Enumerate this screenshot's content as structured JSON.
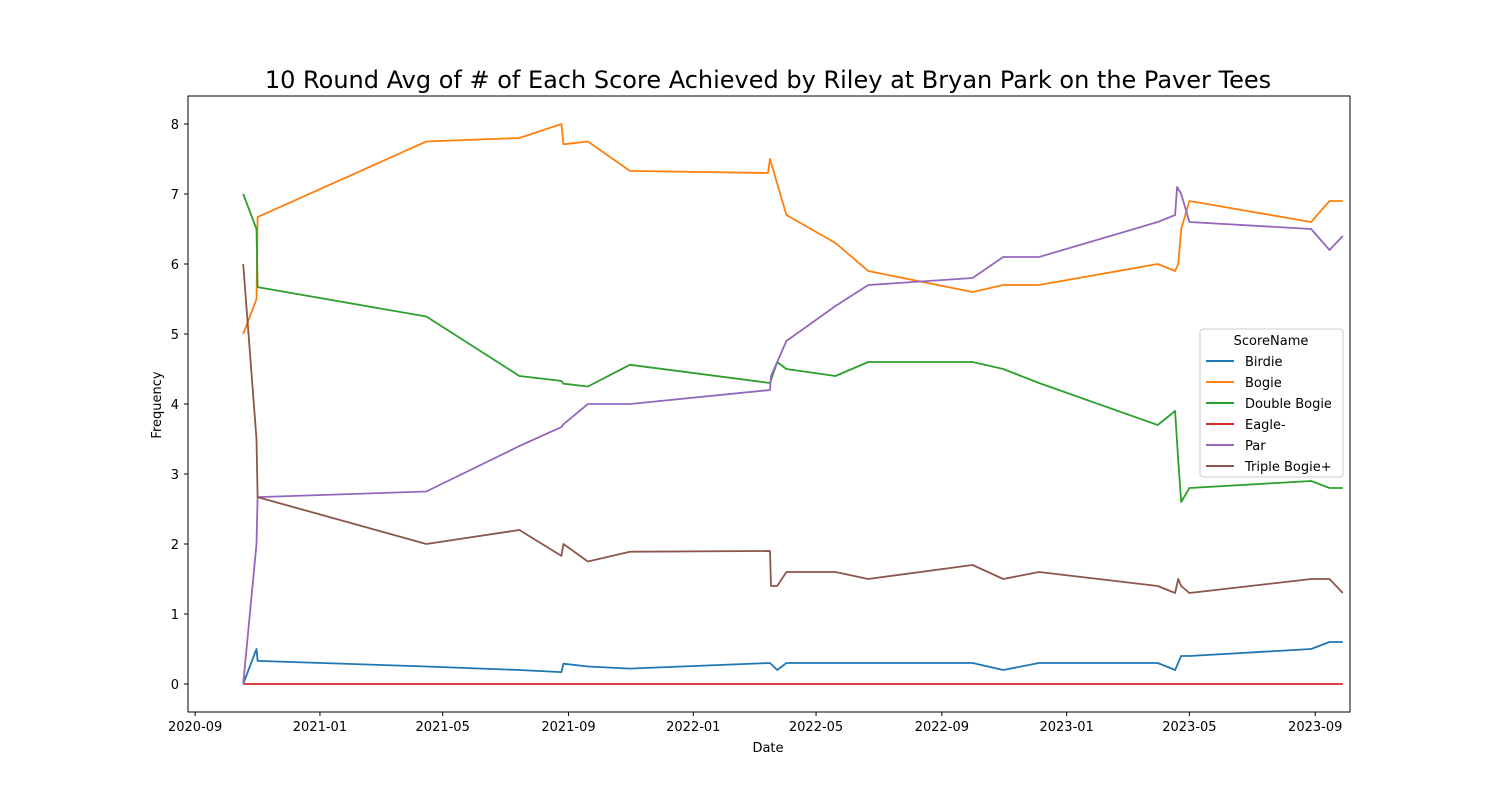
{
  "chart_data": {
    "type": "line",
    "title": "10 Round Avg of # of Each Score Achieved by Riley at Bryan Park on the Paver Tees",
    "xlabel": "Date",
    "ylabel": "Frequency",
    "xlim": [
      "2020-08-25",
      "2023-10-05"
    ],
    "ylim": [
      -0.4,
      8.4
    ],
    "x_ticks": [
      "2020-09-01",
      "2021-01-01",
      "2021-05-01",
      "2021-09-01",
      "2022-01-01",
      "2022-05-01",
      "2022-09-01",
      "2023-01-01",
      "2023-05-01",
      "2023-09-01"
    ],
    "x_tick_labels": [
      "2020-09",
      "2021-01",
      "2021-05",
      "2021-09",
      "2022-01",
      "2022-05",
      "2022-09",
      "2023-01",
      "2023-05",
      "2023-09"
    ],
    "y_ticks": [
      0,
      1,
      2,
      3,
      4,
      5,
      6,
      7,
      8
    ],
    "grid": false,
    "legend": {
      "title": "ScoreName",
      "placement": "center-right"
    },
    "series": [
      {
        "name": "Birdie",
        "color": "#1f77b4",
        "points": [
          [
            "2020-10-18",
            0
          ],
          [
            "2020-10-31",
            0.5
          ],
          [
            "2020-11-01",
            0.33
          ],
          [
            "2021-04-15",
            0.25
          ],
          [
            "2021-07-15",
            0.2
          ],
          [
            "2021-08-25",
            0.17
          ],
          [
            "2021-08-27",
            0.29
          ],
          [
            "2021-09-20",
            0.25
          ],
          [
            "2021-10-31",
            0.22
          ],
          [
            "2022-03-17",
            0.3
          ],
          [
            "2022-03-24",
            0.2
          ],
          [
            "2022-04-02",
            0.3
          ],
          [
            "2022-05-20",
            0.3
          ],
          [
            "2022-06-21",
            0.3
          ],
          [
            "2022-10-01",
            0.3
          ],
          [
            "2022-10-31",
            0.2
          ],
          [
            "2022-12-05",
            0.3
          ],
          [
            "2023-03-31",
            0.3
          ],
          [
            "2023-04-17",
            0.2
          ],
          [
            "2023-04-23",
            0.4
          ],
          [
            "2023-05-01",
            0.4
          ],
          [
            "2023-08-28",
            0.5
          ],
          [
            "2023-09-15",
            0.6
          ],
          [
            "2023-09-28",
            0.6
          ]
        ]
      },
      {
        "name": "Bogie",
        "color": "#ff7f0e",
        "points": [
          [
            "2020-10-18",
            5.0
          ],
          [
            "2020-10-31",
            5.5
          ],
          [
            "2020-11-01",
            6.67
          ],
          [
            "2021-04-15",
            7.75
          ],
          [
            "2021-07-15",
            7.8
          ],
          [
            "2021-08-25",
            8.0
          ],
          [
            "2021-08-27",
            7.71
          ],
          [
            "2021-09-20",
            7.75
          ],
          [
            "2021-10-31",
            7.33
          ],
          [
            "2022-03-15",
            7.3
          ],
          [
            "2022-03-17",
            7.5
          ],
          [
            "2022-04-02",
            6.7
          ],
          [
            "2022-05-20",
            6.3
          ],
          [
            "2022-06-21",
            5.9
          ],
          [
            "2022-10-01",
            5.6
          ],
          [
            "2022-10-31",
            5.7
          ],
          [
            "2022-12-05",
            5.7
          ],
          [
            "2023-03-31",
            6.0
          ],
          [
            "2023-04-17",
            5.9
          ],
          [
            "2023-04-20",
            6.0
          ],
          [
            "2023-04-23",
            6.5
          ],
          [
            "2023-05-01",
            6.9
          ],
          [
            "2023-08-28",
            6.6
          ],
          [
            "2023-09-15",
            6.9
          ],
          [
            "2023-09-28",
            6.9
          ]
        ]
      },
      {
        "name": "Double Bogie",
        "color": "#2ca02c",
        "points": [
          [
            "2020-10-18",
            7.0
          ],
          [
            "2020-10-31",
            6.5
          ],
          [
            "2020-11-01",
            5.67
          ],
          [
            "2021-04-15",
            5.25
          ],
          [
            "2021-07-15",
            4.4
          ],
          [
            "2021-08-25",
            4.33
          ],
          [
            "2021-08-27",
            4.29
          ],
          [
            "2021-09-20",
            4.25
          ],
          [
            "2021-10-31",
            4.56
          ],
          [
            "2022-03-17",
            4.3
          ],
          [
            "2022-03-24",
            4.6
          ],
          [
            "2022-04-02",
            4.5
          ],
          [
            "2022-05-20",
            4.4
          ],
          [
            "2022-06-21",
            4.6
          ],
          [
            "2022-10-01",
            4.6
          ],
          [
            "2022-10-31",
            4.5
          ],
          [
            "2022-12-05",
            4.3
          ],
          [
            "2023-03-31",
            3.7
          ],
          [
            "2023-04-17",
            3.9
          ],
          [
            "2023-04-20",
            3.2
          ],
          [
            "2023-04-23",
            2.6
          ],
          [
            "2023-05-01",
            2.8
          ],
          [
            "2023-08-28",
            2.9
          ],
          [
            "2023-09-15",
            2.8
          ],
          [
            "2023-09-28",
            2.8
          ]
        ]
      },
      {
        "name": "Eagle-",
        "color": "#d62728",
        "points": [
          [
            "2020-10-18",
            0
          ],
          [
            "2023-09-28",
            0
          ]
        ]
      },
      {
        "name": "Par",
        "color": "#9467bd",
        "points": [
          [
            "2020-10-18",
            0
          ],
          [
            "2020-10-31",
            2.0
          ],
          [
            "2020-11-01",
            2.67
          ],
          [
            "2021-04-15",
            2.75
          ],
          [
            "2021-07-15",
            3.4
          ],
          [
            "2021-08-25",
            3.67
          ],
          [
            "2021-08-27",
            3.71
          ],
          [
            "2021-09-20",
            4.0
          ],
          [
            "2021-10-31",
            4.0
          ],
          [
            "2022-03-17",
            4.2
          ],
          [
            "2022-03-18",
            4.4
          ],
          [
            "2022-03-24",
            4.6
          ],
          [
            "2022-04-02",
            4.9
          ],
          [
            "2022-05-20",
            5.4
          ],
          [
            "2022-06-21",
            5.7
          ],
          [
            "2022-10-01",
            5.8
          ],
          [
            "2022-10-31",
            6.1
          ],
          [
            "2022-12-05",
            6.1
          ],
          [
            "2023-03-31",
            6.6
          ],
          [
            "2023-04-17",
            6.7
          ],
          [
            "2023-04-19",
            7.1
          ],
          [
            "2023-04-23",
            7.0
          ],
          [
            "2023-05-01",
            6.6
          ],
          [
            "2023-08-28",
            6.5
          ],
          [
            "2023-09-15",
            6.2
          ],
          [
            "2023-09-28",
            6.4
          ]
        ]
      },
      {
        "name": "Triple Bogie+",
        "color": "#8c564b",
        "points": [
          [
            "2020-10-18",
            6.0
          ],
          [
            "2020-10-31",
            3.5
          ],
          [
            "2020-11-01",
            2.67
          ],
          [
            "2021-04-15",
            2.0
          ],
          [
            "2021-07-15",
            2.2
          ],
          [
            "2021-08-25",
            1.83
          ],
          [
            "2021-08-27",
            2.0
          ],
          [
            "2021-09-20",
            1.75
          ],
          [
            "2021-10-31",
            1.89
          ],
          [
            "2022-03-17",
            1.9
          ],
          [
            "2022-03-18",
            1.4
          ],
          [
            "2022-03-24",
            1.4
          ],
          [
            "2022-04-02",
            1.6
          ],
          [
            "2022-05-20",
            1.6
          ],
          [
            "2022-06-21",
            1.5
          ],
          [
            "2022-10-01",
            1.7
          ],
          [
            "2022-10-31",
            1.5
          ],
          [
            "2022-12-05",
            1.6
          ],
          [
            "2023-03-31",
            1.4
          ],
          [
            "2023-04-17",
            1.3
          ],
          [
            "2023-04-20",
            1.5
          ],
          [
            "2023-04-23",
            1.4
          ],
          [
            "2023-05-01",
            1.3
          ],
          [
            "2023-08-28",
            1.5
          ],
          [
            "2023-09-15",
            1.5
          ],
          [
            "2023-09-28",
            1.3
          ]
        ]
      }
    ]
  }
}
